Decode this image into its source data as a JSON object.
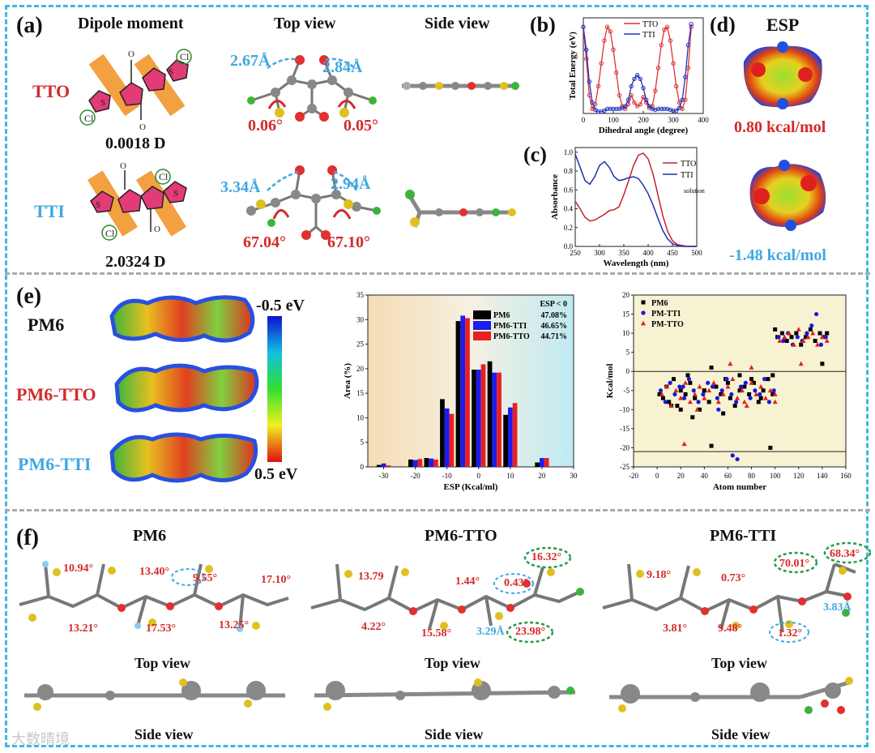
{
  "panel_a": {
    "label": "(a)",
    "col_dipole": "Dipole moment",
    "col_top": "Top view",
    "col_side": "Side view",
    "row1_name": "TTO",
    "row1_dipole": "0.0018 D",
    "row1_len_left": "2.67Å",
    "row1_len_right": "2.84Å",
    "row1_ang_left": "0.06°",
    "row1_ang_right": "0.05°",
    "row2_name": "TTI",
    "row2_dipole": "2.0324 D",
    "row2_len_left": "3.34Å",
    "row2_len_right": "2.94Å",
    "row2_ang_left": "67.04°",
    "row2_ang_right": "67.10°",
    "atom_s": "S",
    "atom_o": "O",
    "atom_cl": "Cl"
  },
  "panel_b": {
    "label": "(b)"
  },
  "panel_c": {
    "label": "(c)"
  },
  "panel_d": {
    "label": "(d)",
    "title": "ESP",
    "val1": "0.80 kcal/mol",
    "val2": "-1.48 kcal/mol"
  },
  "panel_e": {
    "label": "(e)",
    "mol1": "PM6",
    "mol2": "PM6-TTO",
    "mol3": "PM6-TTI",
    "scale_top": "-0.5 eV",
    "scale_bottom": "0.5 eV"
  },
  "panel_f": {
    "label": "(f)",
    "titles": [
      "PM6",
      "PM6-TTO",
      "PM6-TTI"
    ],
    "top_view": "Top view",
    "side_view": "Side view",
    "pm6_angles": [
      "10.94°",
      "13.40°",
      "9.55°",
      "17.10°",
      "13.21°",
      "17.53°",
      "13.25°"
    ],
    "tto_angles": [
      "13.79",
      "1.44°",
      "0.43°",
      "16.32°",
      "4.22°",
      "15.58°",
      "3.29Å",
      "23.98°"
    ],
    "tti_angles": [
      "9.18°",
      "0.73°",
      "70.01°",
      "68.34°",
      "3.81°",
      "9.48°",
      "1.32°",
      "3.83Å"
    ]
  },
  "watermark": "大数晴境",
  "chart_data": [
    {
      "type": "line",
      "xlabel": "Dihedral angle (degree)",
      "ylabel": "Total Energy (eV)",
      "xlim": [
        0,
        400
      ],
      "xticks": [
        "0",
        "100",
        "200",
        "300",
        "400"
      ],
      "legend_position": "top-center",
      "series": [
        {
          "name": "TTO",
          "color": "#e03030",
          "x": [
            0,
            10,
            20,
            30,
            40,
            50,
            60,
            70,
            80,
            90,
            100,
            110,
            120,
            130,
            140,
            150,
            160,
            170,
            180,
            190,
            200,
            210,
            220,
            230,
            240,
            250,
            260,
            270,
            280,
            290,
            300,
            310,
            320,
            330,
            340,
            350,
            360
          ],
          "y": [
            0.95,
            0.6,
            0.2,
            0.05,
            0.1,
            0.3,
            0.55,
            0.8,
            0.95,
            0.9,
            0.7,
            0.45,
            0.2,
            0.08,
            0.05,
            0.1,
            0.2,
            0.12,
            0.08,
            0.1,
            0.18,
            0.12,
            0.06,
            0.08,
            0.25,
            0.5,
            0.75,
            0.92,
            0.95,
            0.8,
            0.55,
            0.3,
            0.12,
            0.05,
            0.15,
            0.5,
            0.95
          ]
        },
        {
          "name": "TTI",
          "color": "#2030c0",
          "x": [
            0,
            10,
            20,
            30,
            40,
            50,
            60,
            70,
            80,
            90,
            100,
            110,
            120,
            130,
            140,
            150,
            160,
            170,
            180,
            190,
            200,
            210,
            220,
            230,
            240,
            250,
            260,
            270,
            280,
            290,
            300,
            310,
            320,
            330,
            340,
            350,
            360
          ],
          "y": [
            0.95,
            0.7,
            0.35,
            0.12,
            0.04,
            0.02,
            0.02,
            0.03,
            0.05,
            0.05,
            0.05,
            0.05,
            0.05,
            0.06,
            0.08,
            0.15,
            0.3,
            0.38,
            0.42,
            0.38,
            0.28,
            0.15,
            0.08,
            0.05,
            0.04,
            0.05,
            0.05,
            0.05,
            0.05,
            0.04,
            0.03,
            0.03,
            0.06,
            0.15,
            0.4,
            0.75,
            0.98
          ]
        }
      ]
    },
    {
      "type": "line",
      "xlabel": "Wavelength (nm)",
      "ylabel": "Absorbance",
      "xlim": [
        250,
        500
      ],
      "ylim": [
        0,
        1.05
      ],
      "xticks": [
        "250",
        "300",
        "350",
        "400",
        "450",
        "500"
      ],
      "yticks": [
        "0.0",
        "0.2",
        "0.4",
        "0.6",
        "0.8",
        "1.0"
      ],
      "annotation": "solution",
      "legend_position": "top-right",
      "series": [
        {
          "name": "TTO",
          "color": "#c8202a",
          "x": [
            250,
            260,
            270,
            280,
            290,
            300,
            310,
            320,
            330,
            340,
            350,
            360,
            370,
            380,
            390,
            400,
            410,
            420,
            430,
            440,
            450,
            460,
            470,
            480,
            490,
            500
          ],
          "y": [
            0.48,
            0.4,
            0.31,
            0.27,
            0.28,
            0.31,
            0.34,
            0.38,
            0.39,
            0.42,
            0.55,
            0.7,
            0.86,
            0.97,
            0.99,
            0.93,
            0.77,
            0.55,
            0.33,
            0.16,
            0.06,
            0.02,
            0.01,
            0.0,
            0.0,
            0.0
          ]
        },
        {
          "name": "TTI",
          "color": "#1d2fa8",
          "x": [
            250,
            260,
            270,
            280,
            290,
            300,
            310,
            320,
            330,
            340,
            350,
            360,
            370,
            380,
            390,
            400,
            410,
            420,
            430,
            440,
            450,
            460,
            470,
            480,
            490,
            500
          ],
          "y": [
            0.98,
            0.84,
            0.7,
            0.66,
            0.74,
            0.86,
            0.9,
            0.84,
            0.74,
            0.7,
            0.71,
            0.73,
            0.74,
            0.72,
            0.65,
            0.56,
            0.44,
            0.3,
            0.17,
            0.08,
            0.03,
            0.01,
            0.0,
            0.0,
            0.0,
            0.0
          ]
        }
      ]
    },
    {
      "type": "bar",
      "xlabel": "ESP (Kcal/ml)",
      "ylabel": "Area (%)",
      "xlim": [
        -35,
        30
      ],
      "ylim": [
        0,
        35
      ],
      "xticks": [
        "-30",
        "-20",
        "-10",
        "0",
        "10",
        "20",
        "30"
      ],
      "yticks": [
        "0",
        "5",
        "10",
        "15",
        "20",
        "25",
        "30",
        "35"
      ],
      "legend_title": "ESP < 0",
      "legend_position": "top-right",
      "categories": [
        "-30",
        "-20",
        "-15",
        "-10",
        "-5",
        "0",
        "5",
        "10",
        "15",
        "20"
      ],
      "series": [
        {
          "name": "PM6",
          "legend_value": "47.08%",
          "color": "#000000",
          "values": [
            0.4,
            1.5,
            1.8,
            13.8,
            29.7,
            19.8,
            21.5,
            10.6,
            0.0,
            0.9
          ]
        },
        {
          "name": "PM6-TTI",
          "legend_value": "46.65%",
          "color": "#1c1cf0",
          "values": [
            0.7,
            1.4,
            1.7,
            11.9,
            30.8,
            19.8,
            19.2,
            12.1,
            0.0,
            1.8
          ]
        },
        {
          "name": "PM6-TTO",
          "legend_value": "44.71%",
          "color": "#e82020",
          "values": [
            0.3,
            1.6,
            1.5,
            10.8,
            30.3,
            20.9,
            19.2,
            13.0,
            0.0,
            1.8
          ]
        }
      ]
    },
    {
      "type": "scatter",
      "xlabel": "Atom number",
      "ylabel": "Kcal/mol",
      "xlim": [
        -20,
        160
      ],
      "ylim": [
        -25,
        20
      ],
      "xticks": [
        "-20",
        "0",
        "20",
        "40",
        "60",
        "80",
        "100",
        "120",
        "140",
        "160"
      ],
      "yticks": [
        "-25",
        "-20",
        "-15",
        "-10",
        "-5",
        "0",
        "5",
        "10",
        "15",
        "20"
      ],
      "hlines": [
        0,
        -21
      ],
      "legend_position": "top-left",
      "series": [
        {
          "name": "PM6",
          "color": "#000000",
          "marker": "square",
          "x": [
            2,
            5,
            8,
            10,
            14,
            17,
            20,
            24,
            28,
            32,
            36,
            40,
            44,
            46,
            50,
            54,
            58,
            62,
            66,
            70,
            74,
            78,
            82,
            86,
            90,
            94,
            96,
            98,
            100,
            102,
            106,
            110,
            114,
            118,
            122,
            126,
            130,
            134,
            138,
            140,
            142,
            144,
            46,
            98,
            30,
            60,
            20,
            70,
            80,
            40,
            12,
            26,
            56,
            88
          ],
          "y": [
            -6,
            -7,
            -4,
            -8,
            -2,
            -9,
            -5,
            -6,
            -3,
            -7,
            -10,
            -5,
            -8,
            -19.5,
            -4,
            -6,
            -2,
            -7,
            -9,
            -5,
            -4,
            -6,
            -3,
            -8,
            -5,
            -2,
            -20,
            -6,
            11,
            9,
            10,
            8,
            9,
            10,
            7,
            9,
            11,
            8,
            10,
            2,
            9,
            10,
            1,
            -1,
            -12,
            -3,
            -10,
            -1,
            -2,
            -5,
            -9,
            -1,
            -11,
            -7
          ]
        },
        {
          "name": "PM-TTI",
          "color": "#1818e0",
          "marker": "circle",
          "x": [
            3,
            7,
            11,
            15,
            19,
            23,
            27,
            31,
            35,
            39,
            43,
            47,
            51,
            55,
            59,
            63,
            67,
            71,
            75,
            79,
            83,
            87,
            91,
            95,
            99,
            103,
            107,
            111,
            115,
            119,
            123,
            127,
            131,
            135,
            139,
            143,
            64,
            68,
            22,
            52
          ],
          "y": [
            -5,
            -8,
            -3,
            -6,
            -4,
            -7,
            -2,
            -5,
            -8,
            -6,
            -3,
            -4,
            -7,
            -5,
            -2,
            -6,
            -8,
            -4,
            -3,
            -7,
            -5,
            -6,
            -2,
            -8,
            -5,
            9,
            8,
            10,
            7,
            9,
            8,
            10,
            12,
            15,
            7,
            9,
            -22,
            -23,
            -4,
            -10
          ]
        },
        {
          "name": "PM-TTO",
          "color": "#e02020",
          "marker": "triangle",
          "x": [
            4,
            8,
            12,
            16,
            20,
            24,
            28,
            32,
            36,
            40,
            44,
            48,
            52,
            56,
            60,
            64,
            68,
            72,
            76,
            80,
            84,
            88,
            92,
            96,
            100,
            104,
            108,
            112,
            116,
            120,
            124,
            128,
            132,
            136,
            140,
            144,
            23,
            74,
            80,
            34,
            62,
            100,
            122
          ],
          "y": [
            -6,
            -4,
            -9,
            -5,
            -7,
            -3,
            -8,
            -6,
            -4,
            -7,
            -5,
            -3,
            -8,
            -6,
            -4,
            -2,
            -7,
            -5,
            -9,
            -3,
            -6,
            -4,
            -7,
            -5,
            -8,
            8,
            9,
            10,
            7,
            11,
            8,
            9,
            10,
            7,
            9,
            8,
            -19,
            -8,
            1,
            -10,
            2,
            -6,
            2
          ]
        }
      ]
    }
  ]
}
